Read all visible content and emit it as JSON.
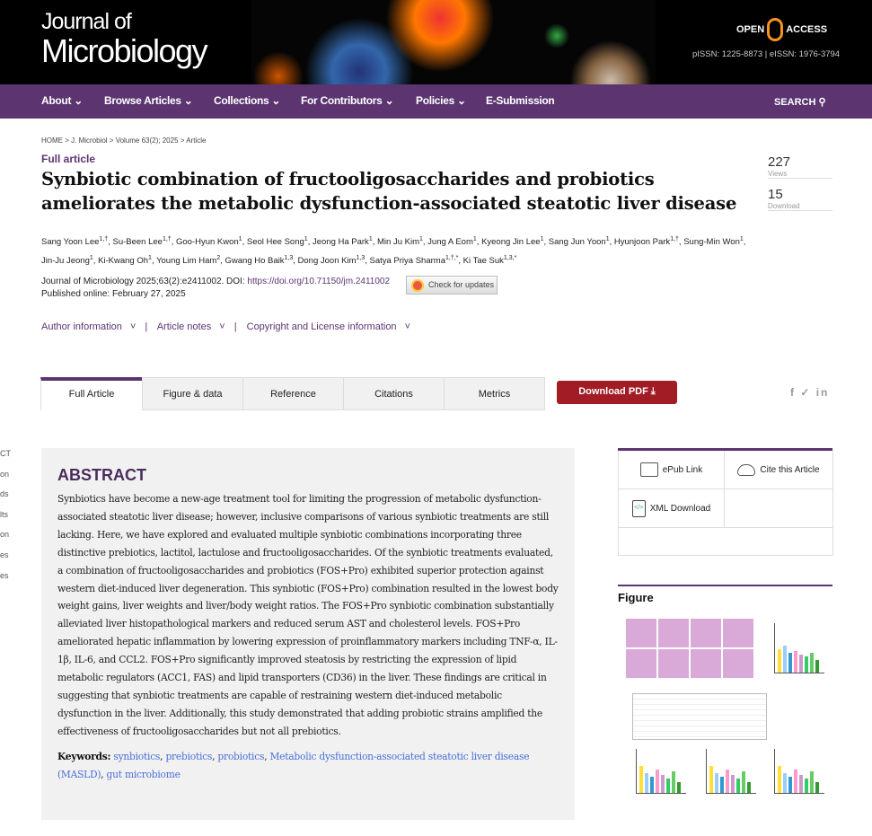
{
  "header": {
    "logo_line1": "Journal of",
    "logo_line2": "Microbiology",
    "open_access": [
      "OPEN",
      "ACCESS"
    ],
    "issn": "pISSN: 1225-8873 | eISSN: 1976-3794"
  },
  "nav": {
    "items": [
      "About",
      "Browse Articles",
      "Collections",
      "For Contributors",
      "Policies",
      "E-Submission"
    ],
    "search": "SEARCH"
  },
  "breadcrumb": "HOME > J. Microbiol > Volume 63(2); 2025 > Article",
  "article": {
    "type": "Full article",
    "title": "Synbiotic combination of fructooligosaccharides and probiotics ameliorates the metabolic dysfunction-associated steatotic liver disease",
    "authors": [
      [
        "Sang Yoon Lee",
        "1,†"
      ],
      [
        "Su-Been Lee",
        "1,†"
      ],
      [
        "Goo-Hyun Kwon",
        "1"
      ],
      [
        "Seol Hee Song",
        "1"
      ],
      [
        "Jeong Ha Park",
        "1"
      ],
      [
        "Min Ju Kim",
        "1"
      ],
      [
        "Jung A Eom",
        "1"
      ],
      [
        "Kyeong Jin Lee",
        "1"
      ],
      [
        "Sang Jun Yoon",
        "1"
      ],
      [
        "Hyunjoon Park",
        "1,†"
      ],
      [
        "Sung-Min Won",
        "1"
      ],
      [
        "Jin-Ju Jeong",
        "1"
      ],
      [
        "Ki-Kwang Oh",
        "1"
      ],
      [
        "Young Lim Ham",
        "2"
      ],
      [
        "Gwang Ho Baik",
        "1,3"
      ],
      [
        "Dong Joon Kim",
        "1,3"
      ],
      [
        "Satya Priya Sharma",
        "1,†,*"
      ],
      [
        "Ki Tae Suk",
        "1,3,*"
      ]
    ],
    "citation": "Journal of Microbiology 2025;63(2):e2411002. DOI: ",
    "doi": "https://doi.org/10.71150/jm.2411002",
    "published": "Published online: February 27, 2025",
    "check_updates": "Check for updates"
  },
  "metrics": {
    "views": "227",
    "views_label": "Views",
    "downloads": "15",
    "downloads_label": "Download"
  },
  "info_links": [
    "Author information",
    "Article notes",
    "Copyright and License information"
  ],
  "tabs": [
    "Full Article",
    "Figure & data",
    "Reference",
    "Citations",
    "Metrics"
  ],
  "download_pdf": "Download PDF",
  "social": "f ✓ in",
  "toc": [
    "CT",
    "on",
    "ds",
    "lts",
    "on",
    "es",
    "es"
  ],
  "abstract": {
    "heading": "ABSTRACT",
    "text": "Synbiotics have become a new-age treatment tool for limiting the progression of metabolic dysfunction-associated steatotic liver disease; however, inclusive comparisons of various synbiotic treatments are still lacking. Here, we have explored and evaluated multiple synbiotic combinations incorporating three distinctive prebiotics, lactitol, lactulose and fructooligosaccharides. Of the synbiotic treatments evaluated, a combination of fructooligosaccharides and probiotics (FOS+Pro) exhibited superior protection against western diet-induced liver degeneration. This synbiotic (FOS+Pro) combination resulted in the lowest body weight gains, liver weights and liver/body weight ratios. The FOS+Pro synbiotic combination substantially alleviated liver histopathological markers and reduced serum AST and cholesterol levels. FOS+Pro ameliorated hepatic inflammation by lowering expression of proinflammatory markers including TNF-α, IL-1β, IL-6, and CCL2. FOS+Pro significantly improved steatosis by restricting the expression of lipid metabolic regulators (ACC1, FAS) and lipid transporters (CD36) in the liver. These findings are critical in suggesting that synbiotic treatments are capable of restraining western diet-induced metabolic dysfunction in the liver. Additionally, this study demonstrated that adding probiotic strains amplified the effectiveness of fructooligosaccharides but not all prebiotics.",
    "keywords_label": "Keywords:",
    "keywords": [
      "synbiotics",
      "prebiotics",
      "probiotics",
      "Metabolic dysfunction-associated steatotic liver disease (MASLD)",
      "gut microbiome"
    ]
  },
  "side": {
    "epub": "ePub Link",
    "cite": "Cite this Article",
    "xml": "XML Download",
    "figure_heading": "Figure"
  },
  "colors": {
    "brand": "#5b3470",
    "pdf": "#a11c24",
    "link": "#4a6fd8"
  }
}
